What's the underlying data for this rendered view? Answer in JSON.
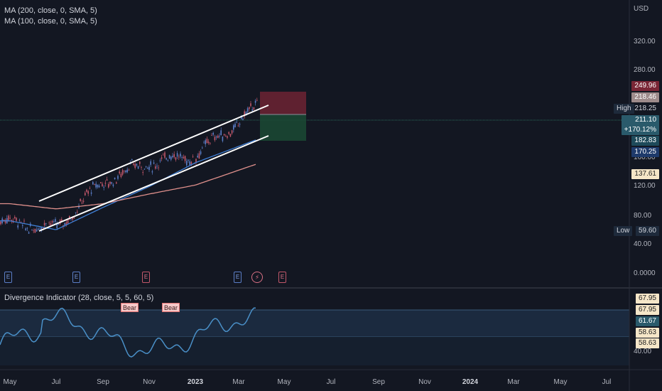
{
  "legend": {
    "ma200": "MA (200, close, 0, SMA, 5)",
    "ma100": "MA (100, close, 0, SMA, 5)",
    "divergence": "Divergence Indicator (28, close, 5, 5, 60, 5)"
  },
  "currency": "USD",
  "price_axis": {
    "ticks": [
      "320.00",
      "280.00",
      "120.00",
      "80.00",
      "40.00",
      "0.0000"
    ],
    "ticks_hidden_partial": [
      "160.00"
    ]
  },
  "price_tags": {
    "t249": "249.96",
    "t218_46": "218.46",
    "t218_25": "218.25",
    "t211": "211.10",
    "pct": "+170.12%",
    "t182": "182.83",
    "t170": "170.25",
    "t137": "137.61",
    "t59": "59.60",
    "high_label": "High",
    "low_label": "Low"
  },
  "osc_axis": {
    "t1": "67.95",
    "t2": "67.95",
    "t3": "61.67",
    "t4": "58.63",
    "t5": "58.63",
    "t6": "40.00"
  },
  "time_axis": [
    "May",
    "Jul",
    "Sep",
    "Nov",
    "2023",
    "Mar",
    "May",
    "Jul",
    "Sep",
    "Nov",
    "2024",
    "Mar",
    "May",
    "Jul"
  ],
  "events": {
    "earnings": "E",
    "dividend": "⚡"
  },
  "signals": {
    "bear1": "Bear",
    "bear2": "Bear"
  },
  "colors": {
    "background": "#131722",
    "candle_up": "#5b7ec7",
    "candle_down": "#c2576a",
    "ma200": "#e0908c",
    "ma100": "#3f7fd6",
    "osc": "#4a90c8",
    "risk_zone": "#7a2636",
    "reward_zone": "#1b4a34"
  },
  "chart_data": {
    "type": "line",
    "title": "",
    "xlabel": "",
    "ylabel": "",
    "x": [
      "May",
      "Jul",
      "Sep",
      "Nov",
      "2023",
      "Mar"
    ],
    "ylim": [
      0,
      340
    ],
    "series": [
      {
        "values": [
          70,
          62,
          125,
          150,
          160,
          205
        ]
      },
      {
        "values": [
          72,
          60,
          90,
          118,
          150,
          172
        ]
      },
      {
        "values": [
          95,
          88,
          95,
          108,
          120,
          140
        ]
      }
    ]
  }
}
